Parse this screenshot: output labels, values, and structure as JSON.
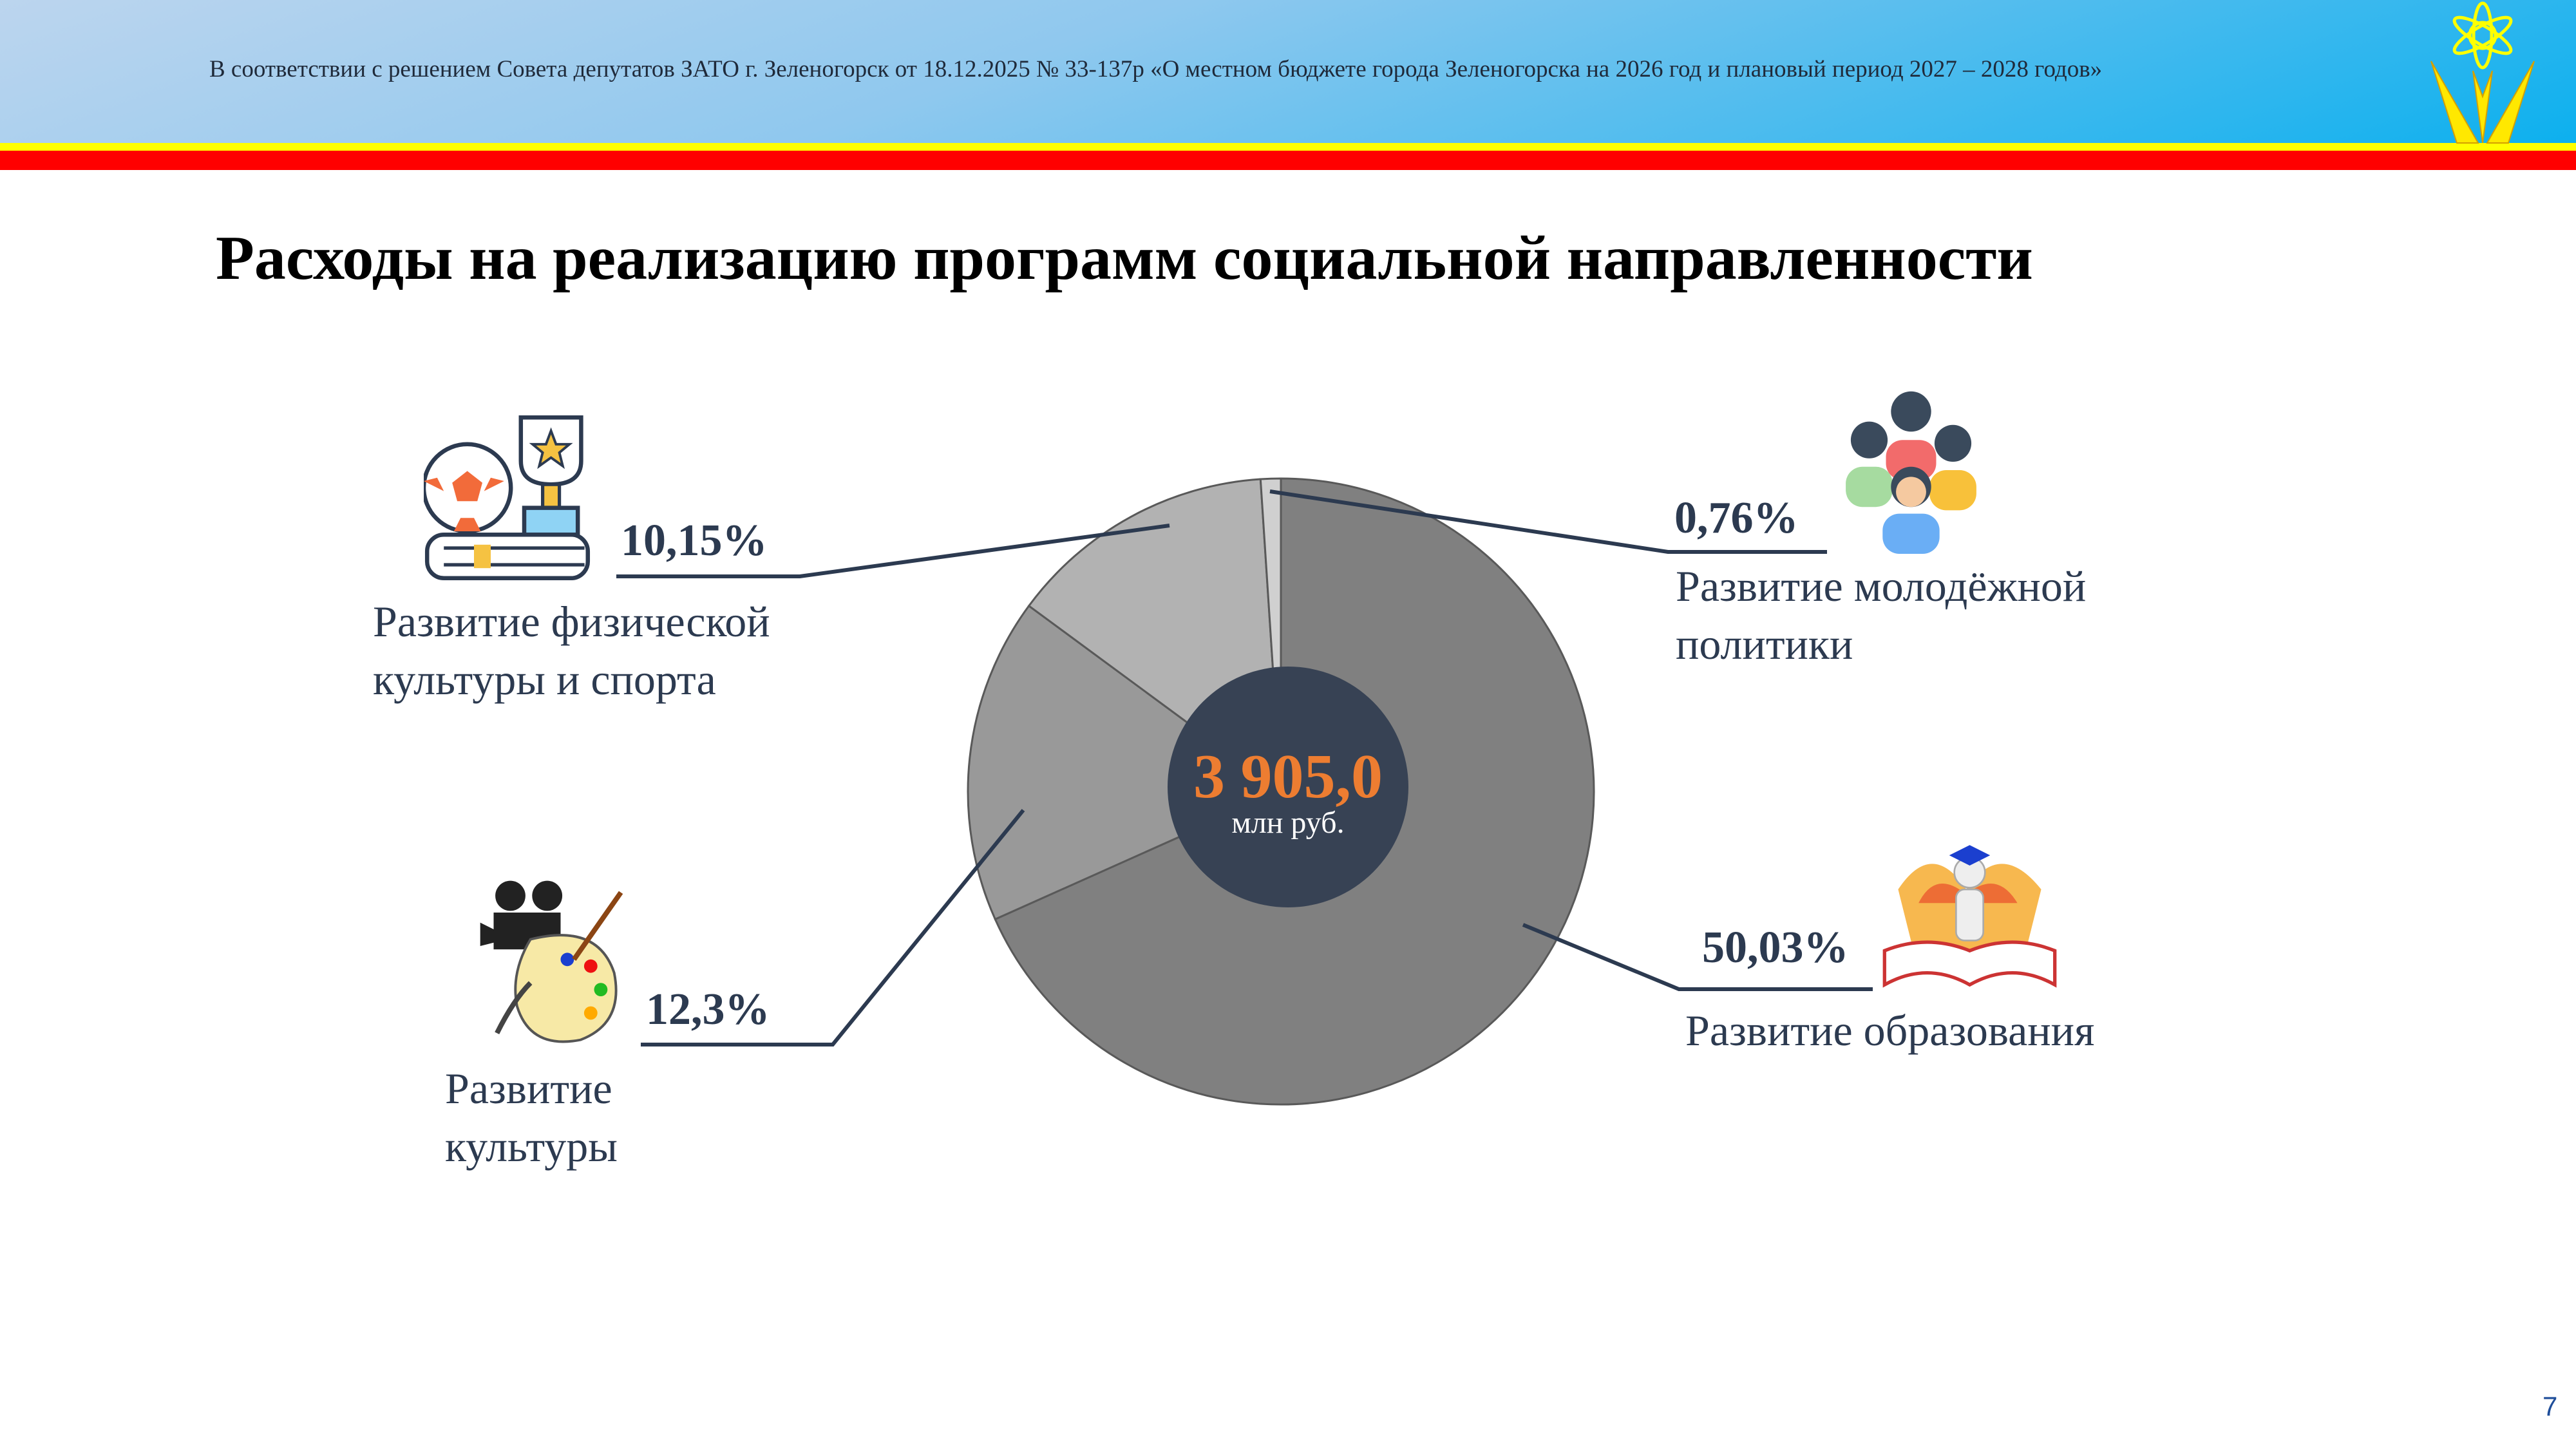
{
  "header": {
    "text": "В соответствии с решением Совета депутатов ЗАТО г. Зеленогорск от  18.12.2025 № 33-137р «О местном бюджете города Зеленогорска на  2026 год и плановый период 2027 – 2028 годов»"
  },
  "title": "Расходы на реализацию программ социальной направленности",
  "page_number": "7",
  "chart_data": {
    "type": "pie",
    "title": "Расходы на реализацию программ социальной направленности",
    "total": "3 905,0",
    "total_unit": "млн руб.",
    "categories": [
      "Развитие образования",
      "Развитие культуры",
      "Развитие физической культуры и спорта",
      "Развитие молодёжной политики"
    ],
    "values": [
      50.03,
      12.3,
      10.15,
      0.76
    ],
    "value_labels": [
      "50,03%",
      "12,3%",
      "10,15%",
      "0,76%"
    ],
    "colors": [
      "#808080",
      "#999999",
      "#b2b2b2",
      "#d0d0d0"
    ],
    "label_lines": [
      "Развитие образования",
      "Развитие\nкультуры",
      "Развитие физической\nкультуры и спорта",
      "Развитие молодёжной\nполитики"
    ]
  },
  "colors": {
    "accent": "#ed7d31",
    "center": "#374254",
    "leader": "#2c3a50"
  }
}
